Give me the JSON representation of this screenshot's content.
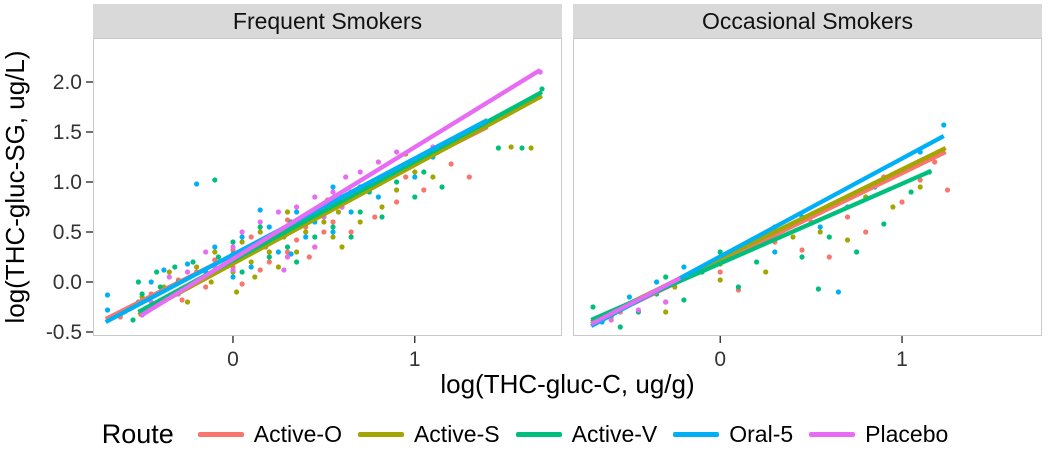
{
  "chart_data": {
    "type": "scatter",
    "xlabel": "log(THC-gluc-C, ug/g)",
    "ylabel": "log(THC-gluc-SG, ug/L)",
    "legend_title": "Route",
    "legend_position": "bottom",
    "grid": false,
    "ylim": [
      -0.54,
      2.44
    ],
    "y_ticks": [
      2.0,
      1.5,
      1.0,
      0.5,
      0.0,
      -0.5
    ],
    "y_tick_labels": [
      "2.0",
      "1.5",
      "1.0",
      "0.5",
      "0.0",
      "-0.5"
    ],
    "x_ticks": [
      0,
      1
    ],
    "x_tick_labels": [
      "0",
      "1"
    ],
    "series": [
      {
        "name": "Active-O",
        "color": "#F8766D"
      },
      {
        "name": "Active-S",
        "color": "#A3A500"
      },
      {
        "name": "Active-V",
        "color": "#00BF7D"
      },
      {
        "name": "Oral-5",
        "color": "#00B0F6"
      },
      {
        "name": "Placebo",
        "color": "#E76BF3"
      }
    ],
    "facets": [
      {
        "label": "Frequent Smokers",
        "xlim": [
          -0.77,
          1.81
        ],
        "points": {
          "Active-O": [
            [
              -0.62,
              -0.35
            ],
            [
              -0.45,
              -0.12
            ],
            [
              -0.45,
              -0.25
            ],
            [
              -0.3,
              0.02
            ],
            [
              -0.28,
              -0.18
            ],
            [
              -0.2,
              0.1
            ],
            [
              -0.15,
              -0.05
            ],
            [
              -0.1,
              0.22
            ],
            [
              0.0,
              0.15
            ],
            [
              0.0,
              0.32
            ],
            [
              0.05,
              -0.02
            ],
            [
              0.08,
              0.28
            ],
            [
              0.1,
              0.45
            ],
            [
              0.15,
              0.12
            ],
            [
              0.18,
              0.35
            ],
            [
              0.2,
              0.2
            ],
            [
              0.25,
              0.5
            ],
            [
              0.3,
              0.3
            ],
            [
              0.3,
              0.62
            ],
            [
              0.35,
              0.42
            ],
            [
              0.4,
              0.55
            ],
            [
              0.42,
              0.25
            ],
            [
              0.45,
              0.68
            ],
            [
              0.5,
              0.5
            ],
            [
              0.52,
              0.82
            ],
            [
              0.55,
              0.6
            ],
            [
              0.6,
              0.75
            ],
            [
              0.65,
              0.5
            ],
            [
              0.7,
              0.88
            ],
            [
              0.78,
              0.65
            ],
            [
              0.82,
              1.0
            ],
            [
              0.9,
              0.8
            ],
            [
              0.95,
              1.05
            ],
            [
              1.05,
              0.92
            ],
            [
              1.2,
              1.18
            ],
            [
              1.3,
              1.05
            ]
          ],
          "Active-S": [
            [
              -0.5,
              -0.3
            ],
            [
              -0.5,
              -0.15
            ],
            [
              -0.38,
              -0.05
            ],
            [
              -0.35,
              0.1
            ],
            [
              -0.25,
              -0.2
            ],
            [
              -0.2,
              0.15
            ],
            [
              -0.12,
              0.0
            ],
            [
              -0.1,
              0.3
            ],
            [
              0.0,
              0.1
            ],
            [
              0.0,
              0.25
            ],
            [
              0.02,
              -0.1
            ],
            [
              0.05,
              0.4
            ],
            [
              0.1,
              0.2
            ],
            [
              0.12,
              0.05
            ],
            [
              0.15,
              0.5
            ],
            [
              0.2,
              0.3
            ],
            [
              0.25,
              0.15
            ],
            [
              0.28,
              0.45
            ],
            [
              0.3,
              0.7
            ],
            [
              0.35,
              0.3
            ],
            [
              0.4,
              0.5
            ],
            [
              0.45,
              0.35
            ],
            [
              0.5,
              0.6
            ],
            [
              0.55,
              0.45
            ],
            [
              0.58,
              0.7
            ],
            [
              0.6,
              0.35
            ],
            [
              0.65,
              0.85
            ],
            [
              0.7,
              0.6
            ],
            [
              0.75,
              0.95
            ],
            [
              0.82,
              0.75
            ],
            [
              0.9,
              0.92
            ],
            [
              1.0,
              1.1
            ],
            [
              1.1,
              1.05
            ],
            [
              1.53,
              1.35
            ],
            [
              1.64,
              1.34
            ],
            [
              0.95,
              1.28
            ]
          ],
          "Active-V": [
            [
              -0.55,
              -0.38
            ],
            [
              -0.52,
              0.0
            ],
            [
              -0.5,
              -0.12
            ],
            [
              -0.42,
              0.1
            ],
            [
              -0.4,
              -0.05
            ],
            [
              -0.32,
              0.15
            ],
            [
              -0.3,
              0.0
            ],
            [
              -0.22,
              0.2
            ],
            [
              -0.15,
              0.05
            ],
            [
              -0.1,
              1.02
            ],
            [
              -0.08,
              0.25
            ],
            [
              0.0,
              0.2
            ],
            [
              0.0,
              0.4
            ],
            [
              0.05,
              0.1
            ],
            [
              0.1,
              0.3
            ],
            [
              0.15,
              0.55
            ],
            [
              0.2,
              0.25
            ],
            [
              0.25,
              0.45
            ],
            [
              0.3,
              0.35
            ],
            [
              0.32,
              0.6
            ],
            [
              0.35,
              0.2
            ],
            [
              0.4,
              0.65
            ],
            [
              0.45,
              0.45
            ],
            [
              0.5,
              0.7
            ],
            [
              0.55,
              0.55
            ],
            [
              0.6,
              0.8
            ],
            [
              0.65,
              0.45
            ],
            [
              0.7,
              0.7
            ],
            [
              0.75,
              0.9
            ],
            [
              0.82,
              0.65
            ],
            [
              0.9,
              1.0
            ],
            [
              1.0,
              0.85
            ],
            [
              1.05,
              1.1
            ],
            [
              1.15,
              0.95
            ],
            [
              1.46,
              1.34
            ],
            [
              1.59,
              1.34
            ],
            [
              1.7,
              1.93
            ]
          ],
          "Oral-5": [
            [
              -0.69,
              -0.13
            ],
            [
              -0.69,
              -0.28
            ],
            [
              -0.6,
              -0.3
            ],
            [
              -0.52,
              -0.2
            ],
            [
              -0.45,
              0.0
            ],
            [
              -0.38,
              0.12
            ],
            [
              -0.3,
              -0.1
            ],
            [
              -0.25,
              0.18
            ],
            [
              -0.2,
              0.98
            ],
            [
              -0.15,
              0.1
            ],
            [
              -0.1,
              0.35
            ],
            [
              0.0,
              0.28
            ],
            [
              0.0,
              0.05
            ],
            [
              0.05,
              0.45
            ],
            [
              0.1,
              0.15
            ],
            [
              0.15,
              0.38
            ],
            [
              0.15,
              0.72
            ],
            [
              0.2,
              0.55
            ],
            [
              0.25,
              0.3
            ],
            [
              0.3,
              0.5
            ],
            [
              0.35,
              0.7
            ],
            [
              0.4,
              0.45
            ],
            [
              0.45,
              0.6
            ],
            [
              0.5,
              0.75
            ],
            [
              0.55,
              0.5
            ],
            [
              0.55,
              0.95
            ],
            [
              0.6,
              0.85
            ],
            [
              0.65,
              0.7
            ],
            [
              0.7,
              0.95
            ],
            [
              0.8,
              0.85
            ],
            [
              0.9,
              1.1
            ],
            [
              1.0,
              1.05
            ],
            [
              1.1,
              1.25
            ],
            [
              0.32,
              0.28
            ]
          ],
          "Placebo": [
            [
              -0.5,
              -0.33
            ],
            [
              -0.45,
              -0.2
            ],
            [
              -0.35,
              0.05
            ],
            [
              -0.3,
              -0.12
            ],
            [
              -0.25,
              0.1
            ],
            [
              -0.2,
              0.0
            ],
            [
              -0.15,
              0.3
            ],
            [
              -0.1,
              0.15
            ],
            [
              0.0,
              0.35
            ],
            [
              0.0,
              0.12
            ],
            [
              0.05,
              0.5
            ],
            [
              0.1,
              0.3
            ],
            [
              0.15,
              0.6
            ],
            [
              0.2,
              0.4
            ],
            [
              0.25,
              0.7
            ],
            [
              0.28,
              0.12
            ],
            [
              0.3,
              0.5
            ],
            [
              0.3,
              0.25
            ],
            [
              0.35,
              0.75
            ],
            [
              0.4,
              0.6
            ],
            [
              0.45,
              0.85
            ],
            [
              0.45,
              0.35
            ],
            [
              0.5,
              0.65
            ],
            [
              0.55,
              0.9
            ],
            [
              0.6,
              0.75
            ],
            [
              0.62,
              1.05
            ],
            [
              0.65,
              0.9
            ],
            [
              0.7,
              1.1
            ],
            [
              0.75,
              0.95
            ],
            [
              0.8,
              1.2
            ],
            [
              0.85,
              1.05
            ],
            [
              0.9,
              1.3
            ],
            [
              1.0,
              1.2
            ],
            [
              1.1,
              1.35
            ],
            [
              1.69,
              2.1
            ]
          ]
        },
        "trend_lines": {
          "Active-O": [
            -0.7,
            -0.37,
            1.4,
            1.55
          ],
          "Active-S": [
            -0.52,
            -0.33,
            1.7,
            1.86
          ],
          "Active-V": [
            -0.52,
            -0.3,
            1.7,
            1.9
          ],
          "Oral-5": [
            -0.7,
            -0.4,
            1.4,
            1.62
          ],
          "Placebo": [
            -0.51,
            -0.34,
            1.69,
            2.12
          ]
        }
      },
      {
        "label": "Occasional Smokers",
        "xlim": [
          -0.81,
          1.77
        ],
        "points": {
          "Active-O": [
            [
              -0.55,
              -0.3
            ],
            [
              -0.3,
              -0.2
            ],
            [
              0.0,
              0.1
            ],
            [
              0.1,
              -0.08
            ],
            [
              0.3,
              0.4
            ],
            [
              0.45,
              0.32
            ],
            [
              0.5,
              0.6
            ],
            [
              0.6,
              0.25
            ],
            [
              0.7,
              0.65
            ],
            [
              0.8,
              0.5
            ],
            [
              0.9,
              1.05
            ],
            [
              1.0,
              0.8
            ],
            [
              1.1,
              1.02
            ],
            [
              1.18,
              1.2
            ],
            [
              1.25,
              0.92
            ]
          ],
          "Active-S": [
            [
              -0.6,
              -0.35
            ],
            [
              -0.45,
              -0.18
            ],
            [
              -0.3,
              -0.3
            ],
            [
              -0.25,
              -0.05
            ],
            [
              0.0,
              0.02
            ],
            [
              0.0,
              0.18
            ],
            [
              0.25,
              0.1
            ],
            [
              0.4,
              0.45
            ],
            [
              0.55,
              0.5
            ],
            [
              0.7,
              0.42
            ],
            [
              0.8,
              0.85
            ],
            [
              0.95,
              0.75
            ],
            [
              1.1,
              0.95
            ],
            [
              1.2,
              1.3
            ]
          ],
          "Active-V": [
            [
              -0.7,
              -0.25
            ],
            [
              -0.55,
              -0.45
            ],
            [
              -0.45,
              -0.3
            ],
            [
              -0.35,
              -0.12
            ],
            [
              -0.3,
              0.05
            ],
            [
              -0.2,
              -0.18
            ],
            [
              -0.1,
              0.1
            ],
            [
              0.0,
              0.3
            ],
            [
              0.1,
              -0.05
            ],
            [
              0.2,
              0.2
            ],
            [
              0.3,
              0.55
            ],
            [
              0.54,
              -0.07
            ],
            [
              0.6,
              0.45
            ],
            [
              0.75,
              0.3
            ],
            [
              0.9,
              0.58
            ],
            [
              1.05,
              0.9
            ],
            [
              1.15,
              1.1
            ],
            [
              0.45,
              0.25
            ]
          ],
          "Oral-5": [
            [
              -0.65,
              -0.4
            ],
            [
              -0.5,
              -0.15
            ],
            [
              -0.35,
              0.0
            ],
            [
              -0.2,
              0.15
            ],
            [
              0.0,
              0.25
            ],
            [
              0.15,
              0.35
            ],
            [
              0.3,
              0.3
            ],
            [
              0.45,
              0.65
            ],
            [
              0.55,
              0.55
            ],
            [
              0.65,
              -0.1
            ],
            [
              0.7,
              0.75
            ],
            [
              0.85,
              0.95
            ],
            [
              1.0,
              1.1
            ],
            [
              1.1,
              1.3
            ],
            [
              1.23,
              1.57
            ]
          ],
          "Placebo": [
            [
              -0.6,
              -0.38
            ],
            [
              -0.45,
              -0.28
            ],
            [
              -0.35,
              -0.1
            ],
            [
              -0.3,
              -0.2
            ],
            [
              -0.25,
              0.0
            ]
          ]
        },
        "trend_lines": {
          "Active-O": [
            -0.71,
            -0.42,
            1.24,
            1.3
          ],
          "Active-S": [
            -0.71,
            -0.4,
            1.24,
            1.34
          ],
          "Active-V": [
            -0.71,
            -0.38,
            1.16,
            1.11
          ],
          "Oral-5": [
            -0.71,
            -0.44,
            1.23,
            1.46
          ],
          "Placebo": [
            -0.71,
            -0.42,
            -0.22,
            0.04
          ]
        }
      }
    ]
  }
}
